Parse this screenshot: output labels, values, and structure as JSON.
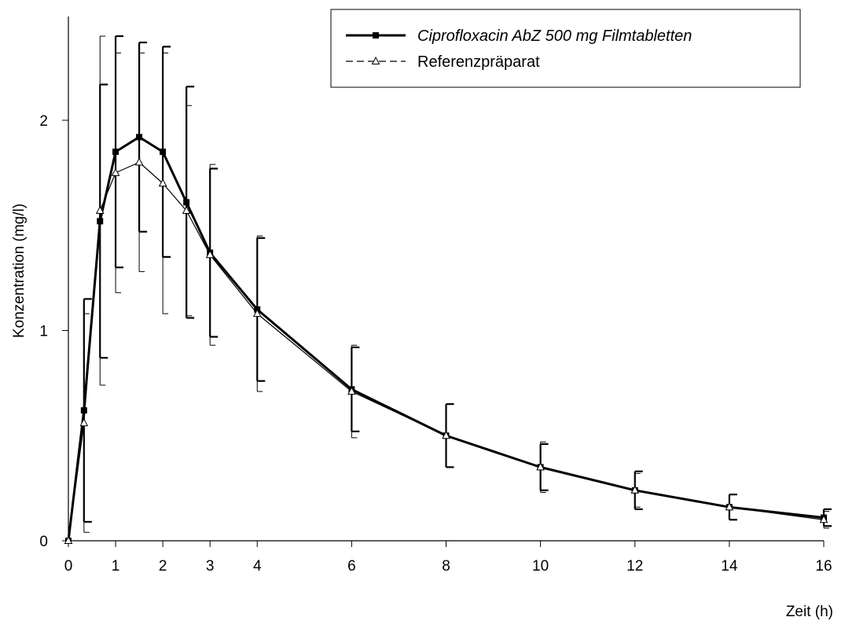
{
  "chart_data": {
    "type": "line",
    "title": "",
    "xlabel": "Zeit (h)",
    "ylabel": "Konzentration (mg/l)",
    "xlim": [
      0,
      16
    ],
    "ylim": [
      0,
      2.5
    ],
    "x_ticks": [
      0,
      1,
      2,
      3,
      4,
      6,
      8,
      10,
      12,
      14,
      16
    ],
    "y_ticks": [
      0,
      1,
      2
    ],
    "grid": false,
    "legend_position": "top-right",
    "series": [
      {
        "name": "Ciprofloxacin AbZ 500 mg Filmtabletten",
        "style": "solid-bold-square",
        "color": "#000000",
        "x": [
          0,
          0.33,
          0.67,
          1,
          1.5,
          2,
          2.5,
          3,
          4,
          6,
          8,
          10,
          12,
          14,
          16
        ],
        "y": [
          0,
          0.62,
          1.52,
          1.85,
          1.92,
          1.85,
          1.61,
          1.37,
          1.1,
          0.72,
          0.5,
          0.35,
          0.24,
          0.16,
          0.11
        ],
        "error": [
          0,
          0.53,
          0.65,
          0.55,
          0.45,
          0.5,
          0.55,
          0.4,
          0.34,
          0.2,
          0.15,
          0.11,
          0.09,
          0.06,
          0.04
        ],
        "error_direction": "up-down"
      },
      {
        "name": "Referenzpräparat",
        "style": "dashed-thin-triangle",
        "color": "#000000",
        "x": [
          0,
          0.33,
          0.67,
          1,
          1.5,
          2,
          2.5,
          3,
          4,
          6,
          8,
          10,
          12,
          14,
          16
        ],
        "y": [
          0,
          0.56,
          1.57,
          1.75,
          1.8,
          1.7,
          1.57,
          1.36,
          1.08,
          0.71,
          0.5,
          0.35,
          0.24,
          0.16,
          0.1
        ],
        "error": [
          0,
          0.52,
          0.83,
          0.57,
          0.52,
          0.62,
          0.5,
          0.43,
          0.37,
          0.22,
          0.15,
          0.12,
          0.08,
          0.06,
          0.04
        ],
        "error_direction": "up-down"
      }
    ]
  }
}
